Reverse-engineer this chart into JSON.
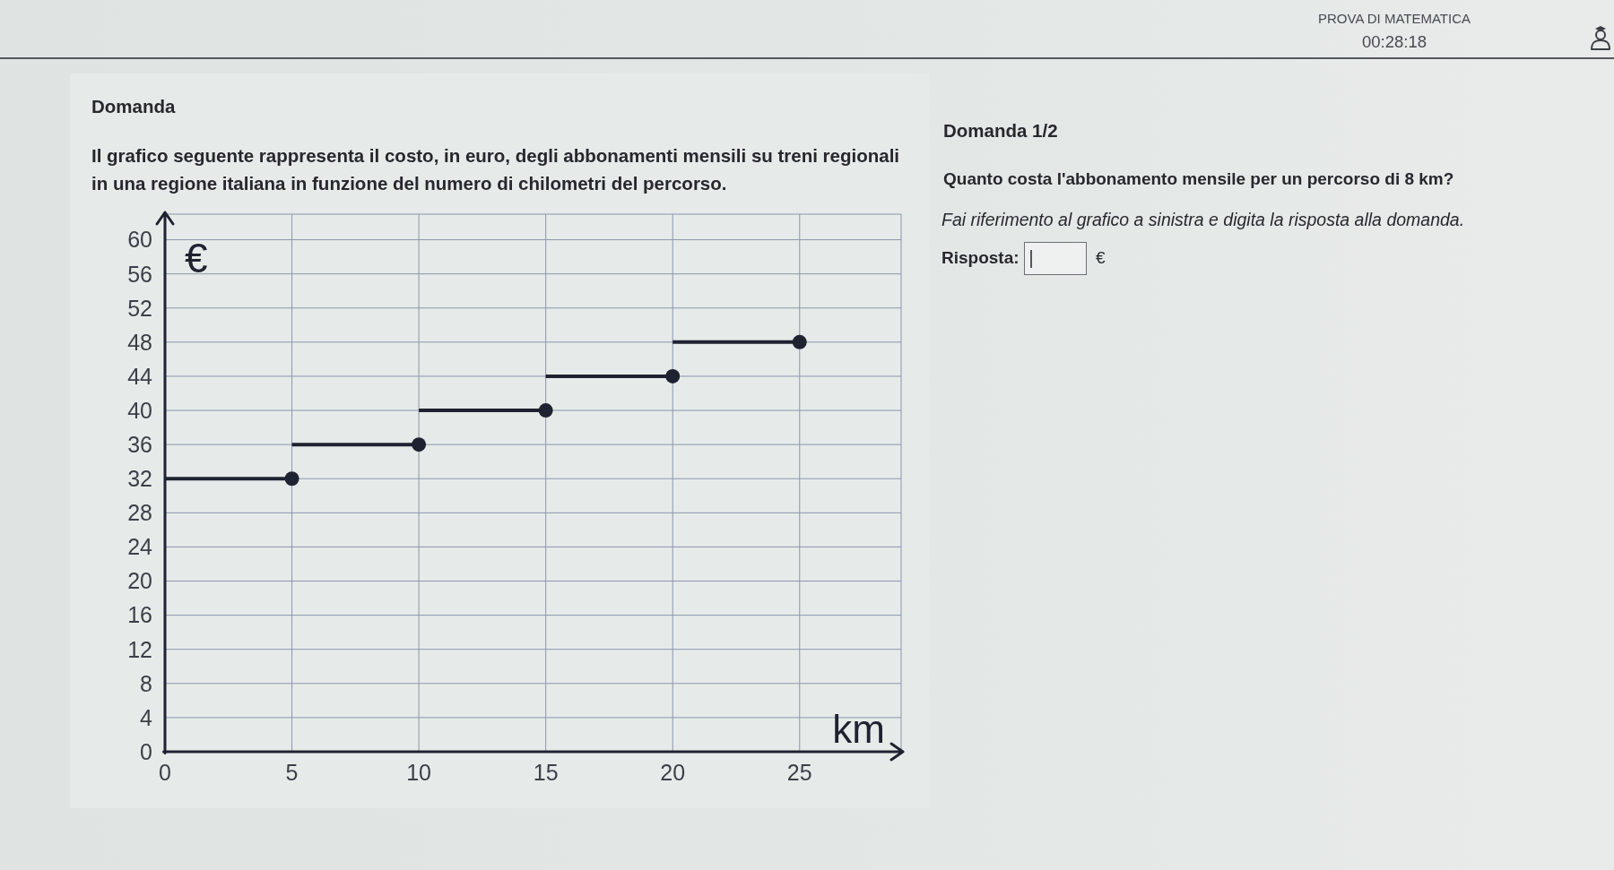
{
  "chart_data": {
    "type": "line",
    "title": "Domanda",
    "subtitle": "Il grafico seguente rappresenta il costo, in euro, degli abbonamenti mensili su treni regionali in una regione italiana in funzione del numero di chilometri del percorso.",
    "xlabel": "km",
    "ylabel": "€",
    "annotations": [
      "PROVA DI MATEMATICA",
      "00:28:18",
      "Domanda 1/2",
      "Quanto costa l'abbonamento mensile per un percorso di 8 km?",
      "Fai riferimento al grafico a sinistra e digita la risposta alla domanda.",
      "Risposta:",
      "€"
    ],
    "series": [
      {
        "x": [
          0,
          5
        ],
        "values": [
          32,
          32
        ],
        "color": "#1f2230",
        "marker": "none"
      },
      {
        "x": [
          5,
          10
        ],
        "values": [
          36,
          36
        ],
        "color": "#1f2230",
        "marker": "none"
      },
      {
        "x": [
          10,
          15
        ],
        "values": [
          40,
          40
        ],
        "color": "#1f2230",
        "marker": "none"
      },
      {
        "x": [
          15,
          20
        ],
        "values": [
          44,
          44
        ],
        "color": "#1f2230",
        "marker": "none"
      },
      {
        "x": [
          20,
          25
        ],
        "values": [
          48,
          48
        ],
        "color": "#1f2230",
        "marker": "none"
      },
      {
        "type": "scatter",
        "x": [
          5,
          10,
          15,
          20,
          25
        ],
        "values": [
          32,
          36,
          40,
          44,
          48
        ],
        "color": "#1f2230",
        "marker": "circle"
      }
    ],
    "xlim": [
      0,
      29
    ],
    "ylim": [
      0,
      63
    ],
    "xticks": [
      0,
      5,
      10,
      15,
      20,
      25
    ],
    "yticks": [
      0,
      4,
      8,
      12,
      16,
      20,
      24,
      28,
      32,
      36,
      40,
      44,
      48,
      52,
      56,
      60
    ],
    "grid": true,
    "line_style": "solid"
  }
}
